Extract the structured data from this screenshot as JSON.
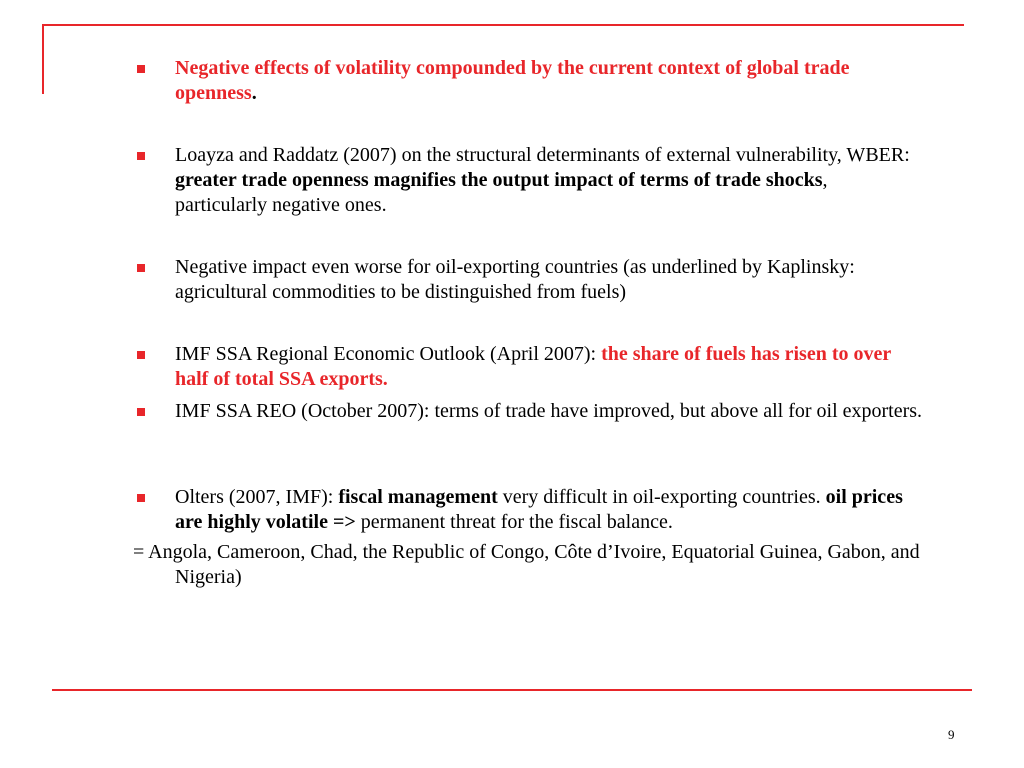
{
  "slide": {
    "page_number": "9",
    "accent_color": "#e8262a",
    "bullets": [
      {
        "red_text": "Negative effects of volatility compounded by the current context of global trade openness",
        "period": "."
      },
      {
        "pre": "Loayza and Raddatz (2007) on the structural determinants of external vulnerability, WBER: ",
        "bold": "greater trade openness magnifies the output impact of terms of trade shocks",
        "post": ", particularly negative ones."
      },
      {
        "text": "Negative impact even worse for oil-exporting countries (as underlined by Kaplinsky: agricultural commodities to be distinguished from fuels)"
      },
      {
        "pre": "IMF SSA Regional Economic Outlook (April 2007): ",
        "red_bold": "the share of fuels has risen to over half of total SSA exports."
      },
      {
        "text": "IMF SSA REO (October 2007): terms of trade have improved, but above all for oil exporters."
      },
      {
        "pre": "Olters (2007, IMF): ",
        "bold1": "fiscal management",
        "mid": " very difficult in oil-exporting countries. ",
        "bold2": "oil prices are highly volatile =>",
        "post": " permanent threat for the fiscal balance."
      }
    ],
    "note": "= Angola, Cameroon, Chad, the Republic of Congo, Côte d’Ivoire, Equatorial Guinea, Gabon, and Nigeria)"
  }
}
